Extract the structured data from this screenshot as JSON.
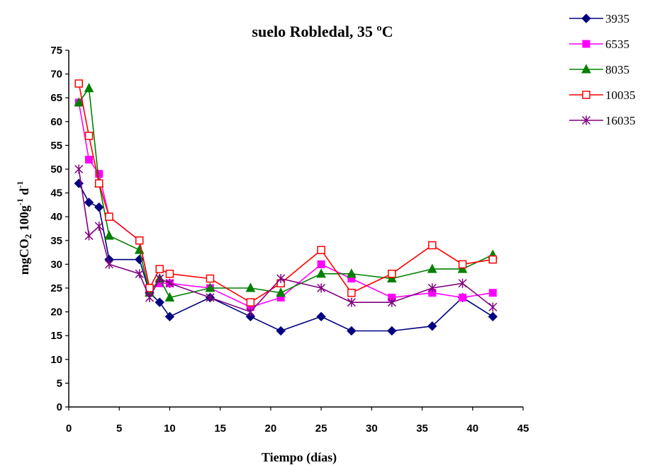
{
  "chart_data": {
    "type": "line",
    "title": "suelo Robledal, 35 ºC",
    "xlabel": "Tiempo (días)",
    "ylabel": {
      "base": "mgCO",
      "sub": "2",
      "mid": " 100g",
      "sup1": "-1",
      "mid2": " d",
      "sup2": "-1"
    },
    "xlim": [
      0,
      45
    ],
    "ylim": [
      0,
      75
    ],
    "xticks": [
      0,
      5,
      10,
      15,
      20,
      25,
      30,
      35,
      40,
      45
    ],
    "yticks": [
      0,
      5,
      10,
      15,
      20,
      25,
      30,
      35,
      40,
      45,
      50,
      55,
      60,
      65,
      70,
      75
    ],
    "grid": false,
    "legend_position": "top-right, outside plot",
    "x": [
      1,
      2,
      3,
      4,
      7,
      8,
      9,
      10,
      14,
      18,
      21,
      25,
      28,
      32,
      36,
      39,
      42
    ],
    "series": [
      {
        "name": "3935",
        "color": "#000080",
        "marker": "diamond",
        "values": [
          47,
          43,
          42,
          31,
          31,
          24,
          22,
          19,
          23,
          19,
          16,
          19,
          16,
          16,
          17,
          23,
          19
        ]
      },
      {
        "name": "6535",
        "color": "#ff00ff",
        "marker": "square-filled",
        "values": [
          64,
          52,
          49,
          40,
          35,
          25,
          26,
          26,
          25,
          21,
          23,
          30,
          27,
          23,
          24,
          23,
          24
        ]
      },
      {
        "name": "8035",
        "color": "#008000",
        "marker": "triangle",
        "values": [
          64,
          67,
          47,
          36,
          33,
          24,
          27,
          23,
          25,
          25,
          24,
          28,
          28,
          27,
          29,
          29,
          32
        ]
      },
      {
        "name": "10035",
        "color": "#ff0000",
        "marker": "square-open",
        "values": [
          68,
          57,
          47,
          40,
          35,
          25,
          29,
          28,
          27,
          22,
          26,
          33,
          24,
          28,
          34,
          30,
          31
        ]
      },
      {
        "name": "16035",
        "color": "#800080",
        "marker": "asterisk",
        "values": [
          50,
          36,
          38,
          30,
          28,
          23,
          27,
          26,
          23,
          20,
          27,
          25,
          22,
          22,
          25,
          26,
          21
        ]
      }
    ]
  }
}
